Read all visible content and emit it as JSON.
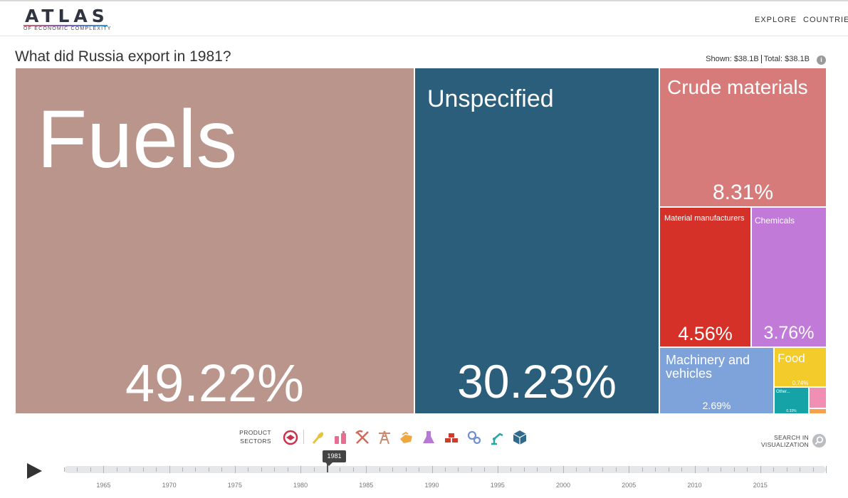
{
  "header": {
    "logo_title": "ATLAS",
    "logo_subtitle": "OF ECONOMIC COMPLEXITY",
    "nav": [
      "EXPLORE",
      "COUNTRIES"
    ]
  },
  "page": {
    "title": "What did Russia export in 1981?",
    "shown_label": "Shown:",
    "shown_value": "$38.1B",
    "total_label": "Total:",
    "total_value": "$38.1B"
  },
  "treemap": {
    "tiles": [
      {
        "id": "fuels",
        "name": "Fuels",
        "pct": "49.22%",
        "color": "#b9958b"
      },
      {
        "id": "unspecified",
        "name": "Unspecified",
        "pct": "30.23%",
        "color": "#2b5e7a"
      },
      {
        "id": "crude",
        "name": "Crude materials",
        "pct": "8.31%",
        "color": "#d77b7a"
      },
      {
        "id": "material",
        "name": "Material manufacturers",
        "pct": "4.56%",
        "color": "#d63129"
      },
      {
        "id": "chemicals",
        "name": "Chemicals",
        "pct": "3.76%",
        "color": "#c27ad8"
      },
      {
        "id": "machinery",
        "name": "Machinery and vehicles",
        "pct": "2.69%",
        "color": "#7ea3da"
      },
      {
        "id": "food",
        "name": "Food",
        "pct": "0.74%",
        "color": "#f3cc2b"
      },
      {
        "id": "other",
        "name": "Other...",
        "pct": "0.33%",
        "color": "#15a3a8"
      },
      {
        "id": "pink",
        "name": "",
        "pct": "",
        "color": "#f08fb3"
      },
      {
        "id": "orange",
        "name": "",
        "pct": "",
        "color": "#f5a24a"
      }
    ]
  },
  "controls": {
    "sectors_label_1": "PRODUCT",
    "sectors_label_2": "SECTORS",
    "sector_icons": [
      {
        "name": "services-icon",
        "color": "#c8334b"
      },
      {
        "name": "agriculture-icon",
        "color": "#e7c53a"
      },
      {
        "name": "textiles-icon",
        "color": "#ea6c93"
      },
      {
        "name": "minerals-icon",
        "color": "#d06a5c"
      },
      {
        "name": "oil-rig-icon",
        "color": "#c98a70"
      },
      {
        "name": "stone-icon",
        "color": "#f1a73f"
      },
      {
        "name": "chemicals-icon",
        "color": "#b879d4"
      },
      {
        "name": "metals-icon",
        "color": "#d23a2b"
      },
      {
        "name": "machinery-gears-icon",
        "color": "#6f8fd1"
      },
      {
        "name": "electronics-robot-icon",
        "color": "#27a6a6"
      },
      {
        "name": "other-box-icon",
        "color": "#2f6a8d"
      }
    ],
    "search_label_1": "SEARCH IN",
    "search_label_2": "VISUALIZATION",
    "current_year": "1981",
    "timeline_years": [
      "1965",
      "1970",
      "1975",
      "1980",
      "1985",
      "1990",
      "1995",
      "2000",
      "2005",
      "2010",
      "2015"
    ]
  }
}
